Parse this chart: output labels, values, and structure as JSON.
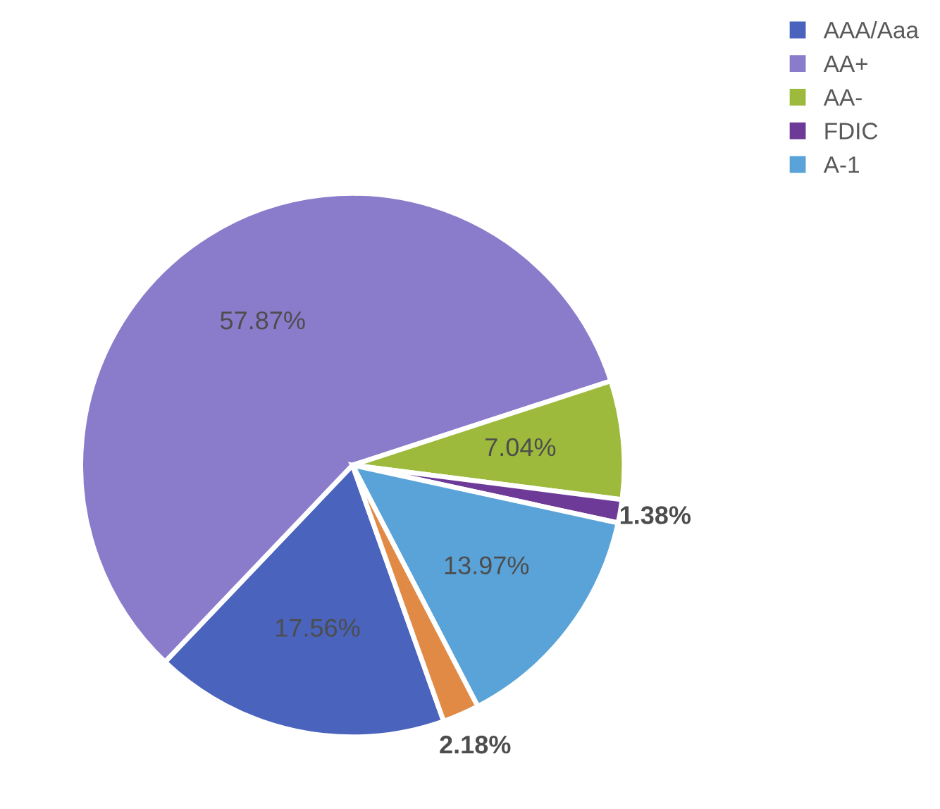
{
  "chart_data": {
    "type": "pie",
    "categories": [
      "AAA/Aaa",
      "AA+",
      "AA-",
      "FDIC",
      "A-1",
      null
    ],
    "values": [
      17.56,
      57.87,
      7.04,
      1.38,
      13.97,
      2.18
    ],
    "colors": [
      "#4a63bd",
      "#8a7ccb",
      "#9dba3c",
      "#6e3a98",
      "#5aa3d8",
      "#e08a45"
    ],
    "value_labels": [
      "17.56%",
      "57.87%",
      "7.04%",
      "1.38%",
      "13.97%",
      "2.18%"
    ],
    "legend": "top right"
  }
}
